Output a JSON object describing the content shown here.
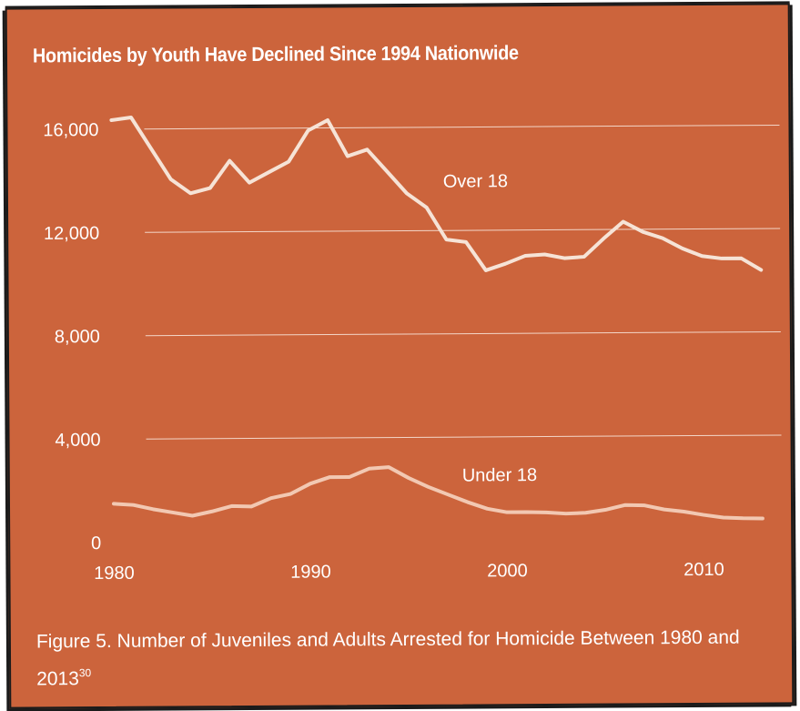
{
  "title": "Homicides by Youth Have Declined Since 1994 Nationwide",
  "caption": "Figure 5. Number of Juveniles and Adults Arrested for Homicide Between 1980 and 2013",
  "caption_footnote": "30",
  "colors": {
    "background": "#cc643c",
    "over18_line": "#f6e3d6",
    "under18_line": "#f2c8b2",
    "gridline": "#f3d6c8",
    "text": "#ffffff"
  },
  "chart_data": {
    "type": "line",
    "title": "Homicides by Youth Have Declined Since 1994 Nationwide",
    "xlabel": "",
    "ylabel": "",
    "xlim": [
      1980,
      2013
    ],
    "ylim": [
      0,
      16000
    ],
    "x_ticks": [
      1980,
      1990,
      2000,
      2010
    ],
    "x_tick_labels": [
      "1980",
      "1990",
      "2000",
      "2010"
    ],
    "y_ticks": [
      0,
      4000,
      8000,
      12000,
      16000
    ],
    "y_tick_labels": [
      "0",
      "4,000",
      "8,000",
      "12,000",
      "16,000"
    ],
    "grid": "horizontal",
    "x": [
      1980,
      1981,
      1982,
      1983,
      1984,
      1985,
      1986,
      1987,
      1988,
      1989,
      1990,
      1991,
      1992,
      1993,
      1994,
      1995,
      1996,
      1997,
      1998,
      1999,
      2000,
      2001,
      2002,
      2003,
      2004,
      2005,
      2006,
      2007,
      2008,
      2009,
      2010,
      2011,
      2012,
      2013
    ],
    "series": [
      {
        "name": "Over 18",
        "values": [
          16350,
          16450,
          15250,
          14050,
          13500,
          13700,
          14750,
          13900,
          14300,
          14700,
          15900,
          16300,
          14900,
          15150,
          14300,
          13450,
          12900,
          11650,
          11550,
          10450,
          10700,
          11000,
          11050,
          10900,
          10950,
          11650,
          12300,
          11900,
          11650,
          11250,
          10950,
          10850,
          10850,
          10400
        ]
      },
      {
        "name": "Under 18",
        "values": [
          1500,
          1450,
          1280,
          1150,
          1020,
          1180,
          1380,
          1360,
          1680,
          1840,
          2230,
          2480,
          2480,
          2800,
          2850,
          2430,
          2080,
          1780,
          1480,
          1220,
          1080,
          1080,
          1060,
          1010,
          1040,
          1150,
          1330,
          1310,
          1150,
          1060,
          930,
          820,
          790,
          780
        ]
      }
    ],
    "annotations": [
      {
        "text": "Over 18",
        "series": "Over 18"
      },
      {
        "text": "Under 18",
        "series": "Under 18"
      }
    ]
  }
}
